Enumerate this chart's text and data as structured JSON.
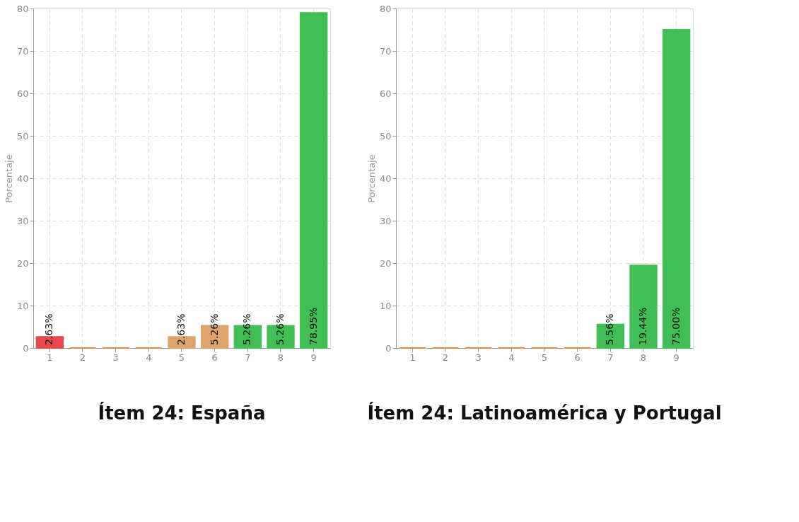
{
  "chart_data": [
    {
      "type": "bar",
      "title": "Ítem 24: España",
      "ylabel": "Porcentaje",
      "categories": [
        "1",
        "2",
        "3",
        "4",
        "5",
        "6",
        "7",
        "8",
        "9"
      ],
      "values": [
        2.63,
        0,
        0,
        0,
        2.63,
        5.26,
        5.26,
        5.26,
        78.95
      ],
      "colors": [
        "#e8474c",
        "#e08a4a",
        "#e08a4a",
        "#e08a4a",
        "#dfa46a",
        "#dfa46a",
        "#40bf55",
        "#40bf55",
        "#40bf55"
      ],
      "value_labels": [
        "2.63%",
        null,
        null,
        null,
        "2.63%",
        "5.26%",
        "5.26%",
        "5.26%",
        "78.95%"
      ],
      "ylim": [
        0,
        80
      ],
      "yticks": [
        0,
        10,
        20,
        30,
        40,
        50,
        60,
        70,
        80
      ],
      "grid": true
    },
    {
      "type": "bar",
      "title": "Ítem 24: Latinoamérica y Portugal",
      "ylabel": "Porcentaje",
      "categories": [
        "1",
        "2",
        "3",
        "4",
        "5",
        "6",
        "7",
        "8",
        "9"
      ],
      "values": [
        0,
        0,
        0,
        0,
        0,
        0,
        5.56,
        19.44,
        75.0
      ],
      "colors": [
        "#e08a4a",
        "#e08a4a",
        "#e08a4a",
        "#e08a4a",
        "#e08a4a",
        "#e08a4a",
        "#40bf55",
        "#40bf55",
        "#40bf55"
      ],
      "value_labels": [
        null,
        null,
        null,
        null,
        null,
        null,
        "5.56%",
        "19.44%",
        "75.00%"
      ],
      "ylim": [
        0,
        80
      ],
      "yticks": [
        0,
        10,
        20,
        30,
        40,
        50,
        60,
        70,
        80
      ],
      "grid": true
    }
  ]
}
